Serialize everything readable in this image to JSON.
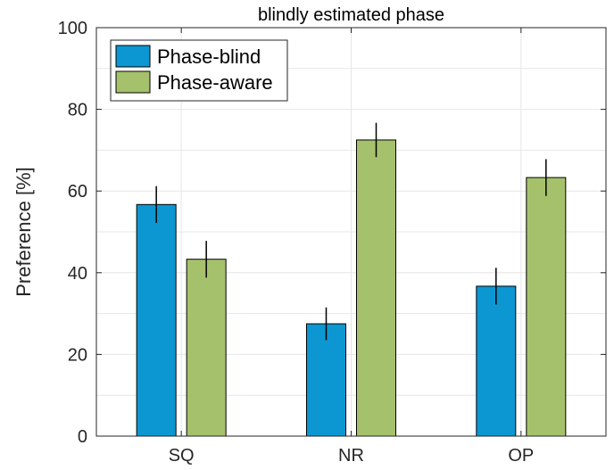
{
  "chart_data": {
    "type": "bar",
    "title": "blindly estimated phase",
    "xlabel": "",
    "ylabel": "Preference [%]",
    "categories": [
      "SQ",
      "NR",
      "OP"
    ],
    "ylim": [
      0,
      100
    ],
    "yticks": [
      0,
      20,
      40,
      60,
      80,
      100
    ],
    "grid": true,
    "legend_position": "top-left",
    "series": [
      {
        "name": "Phase-blind",
        "color": "#0C97D2",
        "values": [
          56.7,
          27.5,
          36.7
        ],
        "error": [
          4.5,
          4.0,
          4.5
        ]
      },
      {
        "name": "Phase-aware",
        "color": "#A6C16C",
        "values": [
          43.3,
          72.5,
          63.3
        ],
        "error": [
          4.5,
          4.2,
          4.5
        ]
      }
    ]
  }
}
